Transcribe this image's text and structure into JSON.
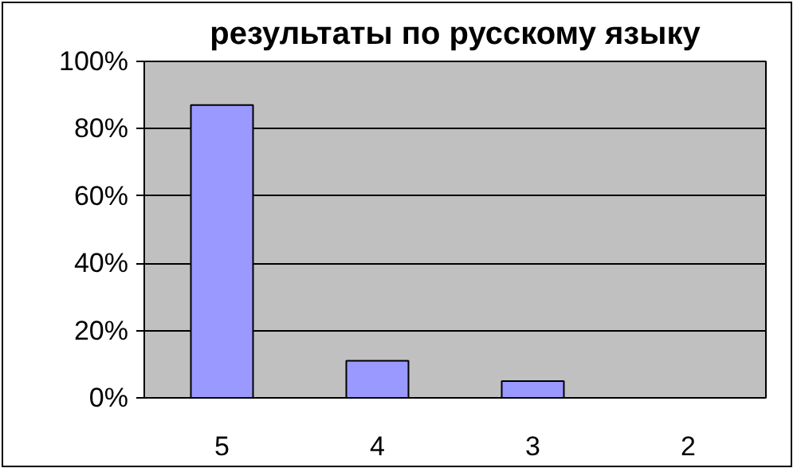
{
  "chart_data": {
    "type": "bar",
    "title": "результаты по русскому языку",
    "categories": [
      "5",
      "4",
      "3",
      "2"
    ],
    "values": [
      87,
      11,
      5,
      0
    ],
    "color": "#9999ff",
    "ylim": [
      0,
      100
    ],
    "yticks": [
      {
        "value": 0,
        "label": "0%"
      },
      {
        "value": 20,
        "label": "20%"
      },
      {
        "value": 40,
        "label": "40%"
      },
      {
        "value": 60,
        "label": "60%"
      },
      {
        "value": 80,
        "label": "80%"
      },
      {
        "value": 100,
        "label": "100%"
      }
    ],
    "grid": "y"
  }
}
